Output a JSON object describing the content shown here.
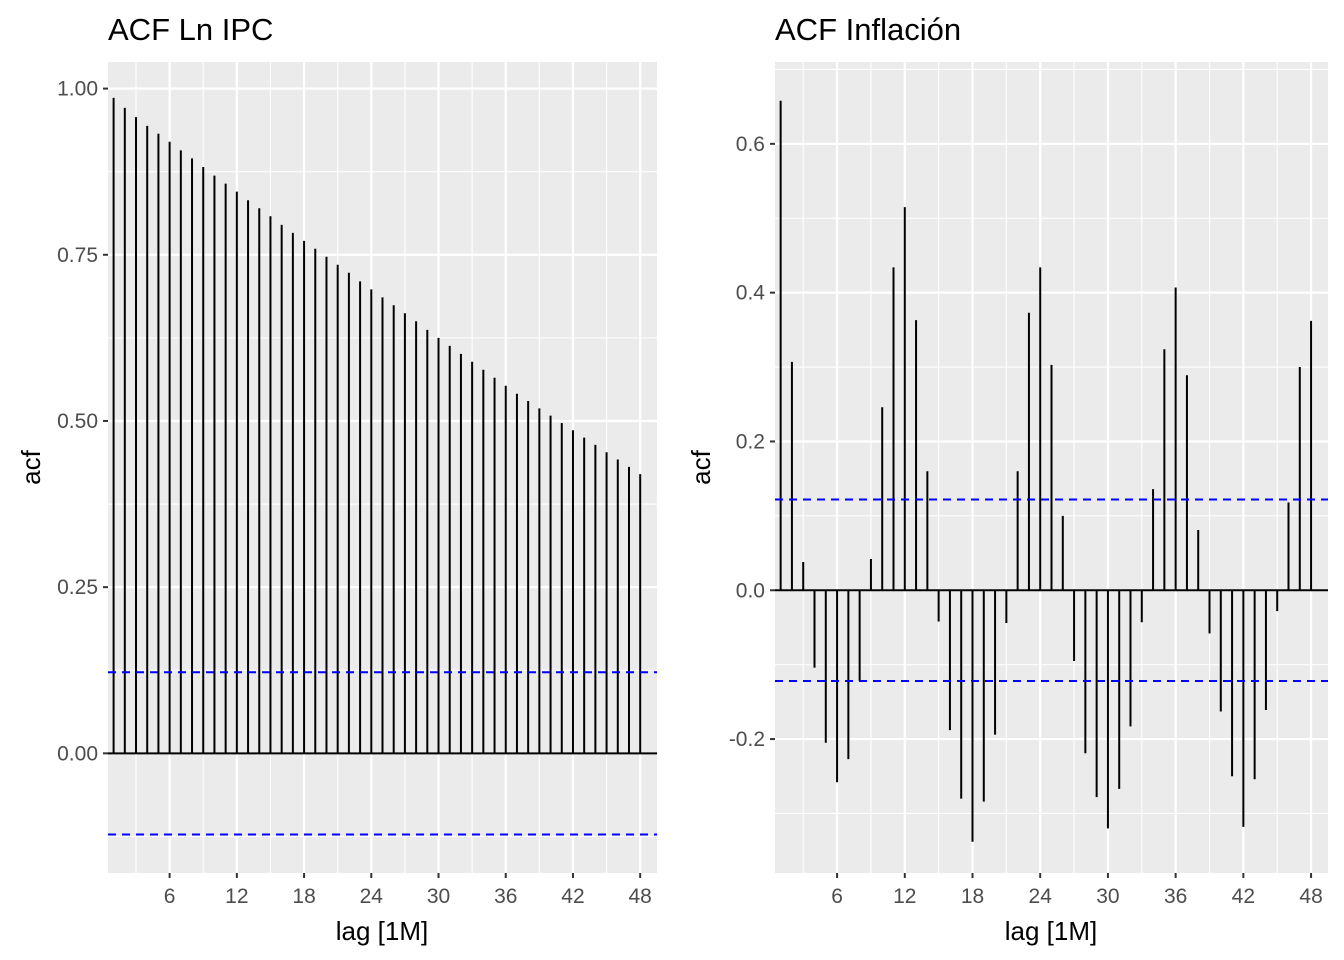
{
  "chart_data": [
    {
      "type": "bar",
      "title": "ACF Ln IPC",
      "xlabel": "lag [1M]",
      "ylabel": "acf",
      "xlim": [
        0.5,
        49.5
      ],
      "ylim": [
        -0.18,
        1.04
      ],
      "xticks": [
        "6",
        "12",
        "18",
        "24",
        "30",
        "36",
        "42",
        "48"
      ],
      "yticks": [
        "0.00",
        "0.25",
        "0.50",
        "0.75",
        "1.00"
      ],
      "confidence_bounds": [
        0.122,
        -0.122
      ],
      "grid": true,
      "colors": {
        "panel": "#ebebeb",
        "grid": "#ffffff",
        "bars": "#000000",
        "bounds": "#0000ff"
      },
      "series": [
        {
          "x": [
            1,
            2,
            3,
            4,
            5,
            6,
            7,
            8,
            9,
            10,
            11,
            12,
            13,
            14,
            15,
            16,
            17,
            18,
            19,
            20,
            21,
            22,
            23,
            24,
            25,
            26,
            27,
            28,
            29,
            30,
            31,
            32,
            33,
            34,
            35,
            36,
            37,
            38,
            39,
            40,
            41,
            42,
            43,
            44,
            45,
            46,
            47,
            48
          ],
          "values": [
            0.986,
            0.971,
            0.957,
            0.944,
            0.932,
            0.92,
            0.907,
            0.895,
            0.882,
            0.869,
            0.857,
            0.845,
            0.832,
            0.82,
            0.808,
            0.795,
            0.783,
            0.771,
            0.759,
            0.747,
            0.735,
            0.723,
            0.71,
            0.698,
            0.686,
            0.674,
            0.662,
            0.65,
            0.637,
            0.625,
            0.613,
            0.601,
            0.589,
            0.577,
            0.565,
            0.553,
            0.541,
            0.53,
            0.519,
            0.508,
            0.497,
            0.486,
            0.475,
            0.464,
            0.453,
            0.442,
            0.431,
            0.42
          ]
        }
      ]
    },
    {
      "type": "bar",
      "title": "ACF Inflación",
      "xlabel": "lag [1M]",
      "ylabel": "acf",
      "xlim": [
        0.5,
        49.5
      ],
      "ylim": [
        -0.38,
        0.71
      ],
      "xticks": [
        "6",
        "12",
        "18",
        "24",
        "30",
        "36",
        "42",
        "48"
      ],
      "yticks": [
        "-0.2",
        "0.0",
        "0.2",
        "0.4",
        "0.6"
      ],
      "confidence_bounds": [
        0.122,
        -0.122
      ],
      "grid": true,
      "colors": {
        "panel": "#ebebeb",
        "grid": "#ffffff",
        "bars": "#000000",
        "bounds": "#0000ff"
      },
      "series": [
        {
          "x": [
            1,
            2,
            3,
            4,
            5,
            6,
            7,
            8,
            9,
            10,
            11,
            12,
            13,
            14,
            15,
            16,
            17,
            18,
            19,
            20,
            21,
            22,
            23,
            24,
            25,
            26,
            27,
            28,
            29,
            30,
            31,
            32,
            33,
            34,
            35,
            36,
            37,
            38,
            39,
            40,
            41,
            42,
            43,
            44,
            45,
            46,
            47,
            48
          ],
          "values": [
            0.658,
            0.307,
            0.038,
            -0.104,
            -0.205,
            -0.258,
            -0.227,
            -0.122,
            0.042,
            0.246,
            0.434,
            0.515,
            0.363,
            0.16,
            -0.042,
            -0.188,
            -0.28,
            -0.338,
            -0.284,
            -0.194,
            -0.044,
            0.16,
            0.373,
            0.434,
            0.303,
            0.1,
            -0.095,
            -0.219,
            -0.278,
            -0.32,
            -0.267,
            -0.183,
            -0.043,
            0.136,
            0.324,
            0.407,
            0.289,
            0.081,
            -0.058,
            -0.163,
            -0.25,
            -0.318,
            -0.254,
            -0.161,
            -0.028,
            0.118,
            0.3,
            0.362
          ]
        }
      ]
    }
  ]
}
